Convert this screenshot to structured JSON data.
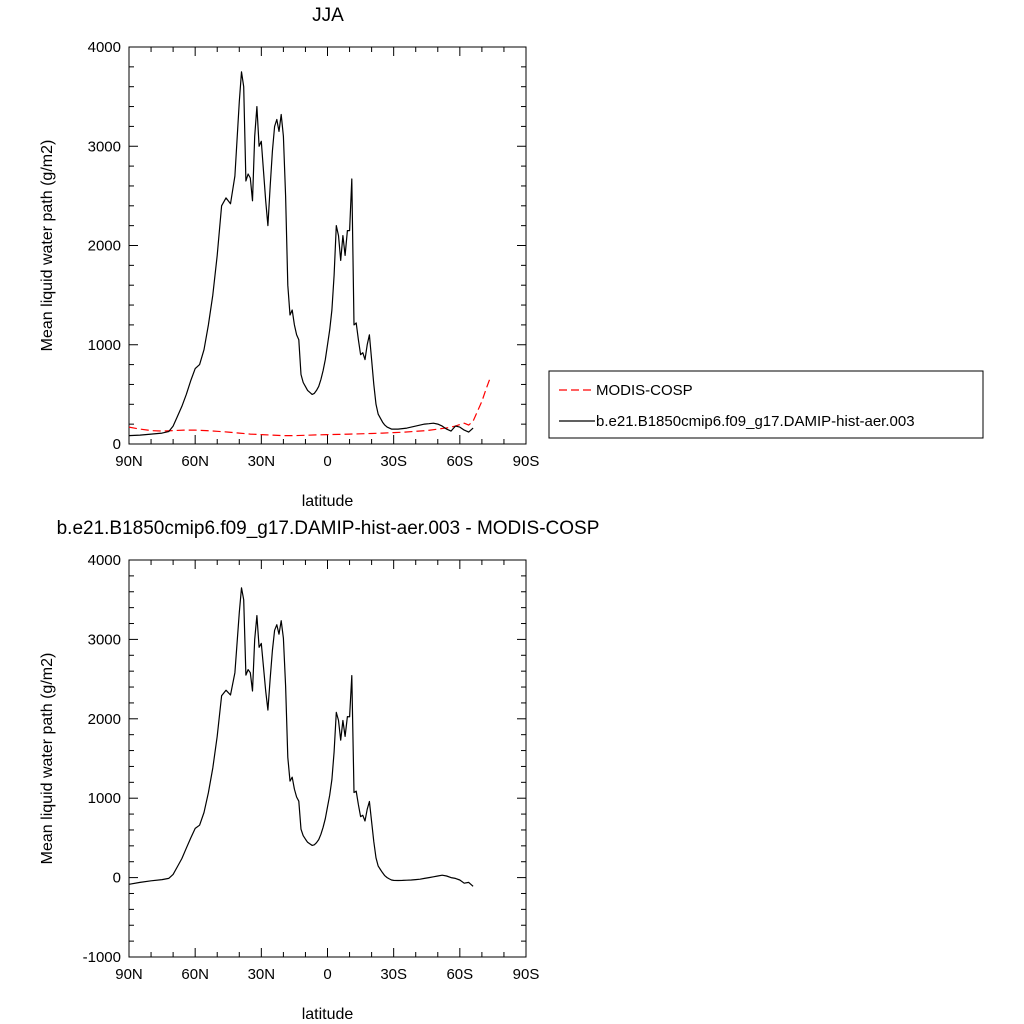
{
  "chart_data": [
    {
      "type": "line",
      "title": "JJA",
      "xlabel": "latitude",
      "ylabel": "Mean liquid water path (g/m2)",
      "xlim": [
        90,
        -90
      ],
      "ylim": [
        0,
        4000
      ],
      "xticks": [
        90,
        60,
        30,
        0,
        -30,
        -60,
        -90
      ],
      "xtick_labels": [
        "90N",
        "60N",
        "30N",
        "0",
        "30S",
        "60S",
        "90S"
      ],
      "yticks": [
        0,
        1000,
        2000,
        3000,
        4000
      ],
      "ytick_labels": [
        "0",
        "1000",
        "2000",
        "3000",
        "4000"
      ],
      "legend_placement": "outside-right",
      "series": [
        {
          "name": "MODIS-COSP",
          "color": "#ff0000",
          "dash": "dashed",
          "x": [
            90,
            85,
            80,
            75,
            70,
            65,
            60,
            55,
            50,
            45,
            40,
            35,
            30,
            25,
            20,
            15,
            10,
            5,
            0,
            -5,
            -10,
            -15,
            -20,
            -25,
            -30,
            -35,
            -40,
            -45,
            -50,
            -55,
            -58,
            -60,
            -62,
            -64,
            -66,
            -68,
            -70,
            -72,
            -74
          ],
          "y": [
            170,
            150,
            135,
            130,
            135,
            140,
            140,
            135,
            128,
            120,
            110,
            100,
            95,
            90,
            85,
            85,
            88,
            92,
            95,
            97,
            100,
            103,
            106,
            110,
            115,
            120,
            128,
            135,
            150,
            165,
            180,
            195,
            210,
            190,
            230,
            330,
            430,
            560,
            680
          ]
        },
        {
          "name": "b.e21.B1850cmip6.f09_g17.DAMIP-hist-aer.003",
          "color": "#000000",
          "dash": "solid",
          "x": [
            90,
            85,
            80,
            75,
            72,
            70,
            68,
            66,
            64,
            62,
            60,
            58,
            56,
            54,
            52,
            50,
            48,
            46,
            44,
            42,
            40,
            39,
            38,
            37,
            36,
            35,
            34,
            33,
            32,
            31,
            30,
            29,
            28,
            27,
            26,
            25,
            24,
            23,
            22,
            21,
            20,
            19,
            18,
            17,
            16,
            15,
            14,
            13,
            12,
            11,
            10,
            9,
            8,
            7,
            6,
            5,
            4,
            3,
            2,
            1,
            0,
            -1,
            -2,
            -3,
            -4,
            -5,
            -6,
            -7,
            -8,
            -9,
            -10,
            -11,
            -12,
            -13,
            -14,
            -15,
            -16,
            -17,
            -18,
            -19,
            -20,
            -21,
            -22,
            -23,
            -24,
            -25,
            -26,
            -27,
            -28,
            -29,
            -30,
            -32,
            -34,
            -36,
            -38,
            -40,
            -42,
            -44,
            -46,
            -48,
            -50,
            -52,
            -54,
            -56,
            -58,
            -60,
            -62,
            -64,
            -66
          ],
          "y": [
            85,
            90,
            100,
            110,
            125,
            180,
            280,
            380,
            500,
            640,
            760,
            800,
            950,
            1200,
            1500,
            1900,
            2400,
            2480,
            2420,
            2700,
            3450,
            3750,
            3600,
            2650,
            2720,
            2680,
            2450,
            3100,
            3400,
            3000,
            3050,
            2750,
            2450,
            2200,
            2600,
            2950,
            3200,
            3270,
            3150,
            3320,
            3100,
            2500,
            1600,
            1300,
            1350,
            1200,
            1100,
            1050,
            700,
            620,
            580,
            540,
            520,
            500,
            510,
            540,
            580,
            650,
            740,
            850,
            1000,
            1150,
            1350,
            1700,
            2200,
            2100,
            1850,
            2100,
            1900,
            2150,
            2150,
            2670,
            1200,
            1220,
            1050,
            900,
            920,
            850,
            1000,
            1100,
            850,
            600,
            400,
            300,
            260,
            220,
            190,
            170,
            160,
            150,
            150,
            150,
            155,
            160,
            170,
            180,
            190,
            200,
            205,
            210,
            200,
            180,
            150,
            130,
            180,
            170,
            140,
            120,
            160
          ]
        }
      ]
    },
    {
      "type": "line",
      "title": "b.e21.B1850cmip6.f09_g17.DAMIP-hist-aer.003 - MODIS-COSP",
      "xlabel": "latitude",
      "ylabel": "Mean liquid water path (g/m2)",
      "xlim": [
        90,
        -90
      ],
      "ylim": [
        -1000,
        4000
      ],
      "xticks": [
        90,
        60,
        30,
        0,
        -30,
        -60,
        -90
      ],
      "xtick_labels": [
        "90N",
        "60N",
        "30N",
        "0",
        "30S",
        "60S",
        "90S"
      ],
      "yticks": [
        -1000,
        0,
        1000,
        2000,
        3000,
        4000
      ],
      "ytick_labels": [
        "-1000",
        "0",
        "1000",
        "2000",
        "3000",
        "4000"
      ],
      "series": [
        {
          "color": "#000000",
          "dash": "solid",
          "x": [
            90,
            85,
            80,
            75,
            72,
            70,
            68,
            66,
            64,
            62,
            60,
            58,
            56,
            54,
            52,
            50,
            48,
            46,
            44,
            42,
            40,
            39,
            38,
            37,
            36,
            35,
            34,
            33,
            32,
            31,
            30,
            29,
            28,
            27,
            26,
            25,
            24,
            23,
            22,
            21,
            20,
            19,
            18,
            17,
            16,
            15,
            14,
            13,
            12,
            11,
            10,
            9,
            8,
            7,
            6,
            5,
            4,
            3,
            2,
            1,
            0,
            -1,
            -2,
            -3,
            -4,
            -5,
            -6,
            -7,
            -8,
            -9,
            -10,
            -11,
            -12,
            -13,
            -14,
            -15,
            -16,
            -17,
            -18,
            -19,
            -20,
            -21,
            -22,
            -23,
            -24,
            -25,
            -26,
            -27,
            -28,
            -29,
            -30,
            -32,
            -34,
            -36,
            -38,
            -40,
            -42,
            -44,
            -46,
            -48,
            -50,
            -52,
            -54,
            -56,
            -58,
            -60,
            -62,
            -64,
            -66
          ],
          "y": [
            -85,
            -60,
            -40,
            -25,
            -10,
            40,
            140,
            240,
            370,
            500,
            620,
            660,
            820,
            1070,
            1380,
            1780,
            2290,
            2360,
            2300,
            2580,
            3340,
            3650,
            3500,
            2550,
            2620,
            2580,
            2350,
            3000,
            3300,
            2900,
            2950,
            2650,
            2350,
            2110,
            2510,
            2860,
            3115,
            3185,
            3065,
            3235,
            3015,
            2415,
            1515,
            1215,
            1265,
            1115,
            1015,
            962,
            610,
            528,
            485,
            445,
            425,
            405,
            413,
            440,
            478,
            545,
            634,
            742,
            890,
            1038,
            1235,
            1583,
            2080,
            1980,
            1730,
            1979,
            1778,
            2028,
            2025,
            2544,
            1072,
            1090,
            918,
            768,
            785,
            713,
            860,
            958,
            705,
            452,
            249,
            145,
            102,
            60,
            24,
            0,
            -16,
            -30,
            -35,
            -37,
            -35,
            -33,
            -30,
            -25,
            -20,
            -10,
            0,
            10,
            20,
            30,
            20,
            0,
            -10,
            -30,
            -70,
            -60,
            -110
          ]
        }
      ]
    }
  ]
}
